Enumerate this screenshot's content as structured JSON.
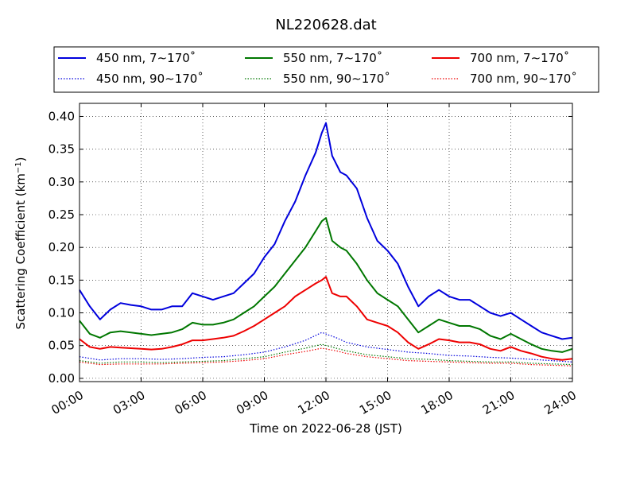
{
  "chart_data": {
    "type": "line",
    "title": "NL220628.dat",
    "xlabel": "Time on 2022-06-28 (JST)",
    "ylabel": "Scattering Coefficient (km",
    "ylabel_sup": "−1",
    "ylabel_close": ")",
    "x_unit": "hours",
    "xlim": [
      0,
      24
    ],
    "ylim": [
      -0.005,
      0.42
    ],
    "grid": true,
    "legend_position": "top",
    "x_ticks": [
      {
        "value": 0,
        "label": "00:00"
      },
      {
        "value": 3,
        "label": "03:00"
      },
      {
        "value": 6,
        "label": "06:00"
      },
      {
        "value": 9,
        "label": "09:00"
      },
      {
        "value": 12,
        "label": "12:00"
      },
      {
        "value": 15,
        "label": "15:00"
      },
      {
        "value": 18,
        "label": "18:00"
      },
      {
        "value": 21,
        "label": "21:00"
      },
      {
        "value": 24,
        "label": "24:00"
      }
    ],
    "y_ticks": [
      {
        "value": 0.0,
        "label": "0.00"
      },
      {
        "value": 0.05,
        "label": "0.05"
      },
      {
        "value": 0.1,
        "label": "0.10"
      },
      {
        "value": 0.15,
        "label": "0.15"
      },
      {
        "value": 0.2,
        "label": "0.20"
      },
      {
        "value": 0.25,
        "label": "0.25"
      },
      {
        "value": 0.3,
        "label": "0.30"
      },
      {
        "value": 0.35,
        "label": "0.35"
      },
      {
        "value": 0.4,
        "label": "0.40"
      }
    ],
    "series": [
      {
        "name": "450 nm, 7∼170˚",
        "color": "#0000dd",
        "style": "solid",
        "x": [
          0,
          0.5,
          1,
          1.5,
          2,
          2.5,
          3,
          3.5,
          4,
          4.5,
          5,
          5.5,
          6,
          6.5,
          7,
          7.5,
          8,
          8.5,
          9,
          9.5,
          10,
          10.5,
          11,
          11.5,
          11.8,
          12,
          12.3,
          12.7,
          13,
          13.5,
          14,
          14.5,
          15,
          15.5,
          16,
          16.5,
          17,
          17.5,
          18,
          18.5,
          19,
          19.5,
          20,
          20.5,
          21,
          21.5,
          22,
          22.5,
          23,
          23.5,
          24
        ],
        "y": [
          0.135,
          0.11,
          0.09,
          0.105,
          0.115,
          0.112,
          0.11,
          0.105,
          0.105,
          0.11,
          0.11,
          0.13,
          0.125,
          0.12,
          0.125,
          0.13,
          0.145,
          0.16,
          0.185,
          0.205,
          0.24,
          0.27,
          0.31,
          0.345,
          0.375,
          0.39,
          0.34,
          0.315,
          0.31,
          0.29,
          0.245,
          0.21,
          0.195,
          0.175,
          0.14,
          0.11,
          0.125,
          0.135,
          0.125,
          0.12,
          0.12,
          0.11,
          0.1,
          0.095,
          0.1,
          0.09,
          0.08,
          0.07,
          0.065,
          0.06,
          0.062
        ]
      },
      {
        "name": "450 nm, 90∼170˚",
        "color": "#0000dd",
        "style": "dotted",
        "x": [
          0,
          1,
          2,
          3,
          4,
          5,
          6,
          7,
          8,
          9,
          10,
          11,
          11.8,
          12.5,
          13,
          14,
          15,
          16,
          17,
          18,
          19,
          20,
          21,
          22,
          23,
          24
        ],
        "y": [
          0.033,
          0.028,
          0.03,
          0.03,
          0.029,
          0.03,
          0.032,
          0.033,
          0.036,
          0.04,
          0.048,
          0.058,
          0.07,
          0.062,
          0.055,
          0.048,
          0.044,
          0.04,
          0.038,
          0.035,
          0.034,
          0.032,
          0.031,
          0.029,
          0.027,
          0.025
        ]
      },
      {
        "name": "550 nm, 7∼170˚",
        "color": "#007700",
        "style": "solid",
        "x": [
          0,
          0.5,
          1,
          1.5,
          2,
          2.5,
          3,
          3.5,
          4,
          4.5,
          5,
          5.5,
          6,
          6.5,
          7,
          7.5,
          8,
          8.5,
          9,
          9.5,
          10,
          10.5,
          11,
          11.5,
          11.8,
          12,
          12.3,
          12.7,
          13,
          13.5,
          14,
          14.5,
          15,
          15.5,
          16,
          16.5,
          17,
          17.5,
          18,
          18.5,
          19,
          19.5,
          20,
          20.5,
          21,
          21.5,
          22,
          22.5,
          23,
          23.5,
          24
        ],
        "y": [
          0.088,
          0.068,
          0.062,
          0.07,
          0.072,
          0.07,
          0.068,
          0.066,
          0.068,
          0.07,
          0.075,
          0.085,
          0.082,
          0.082,
          0.085,
          0.09,
          0.1,
          0.11,
          0.125,
          0.14,
          0.16,
          0.18,
          0.2,
          0.225,
          0.24,
          0.245,
          0.21,
          0.2,
          0.195,
          0.175,
          0.15,
          0.13,
          0.12,
          0.11,
          0.09,
          0.07,
          0.08,
          0.09,
          0.085,
          0.08,
          0.08,
          0.075,
          0.065,
          0.06,
          0.068,
          0.06,
          0.052,
          0.045,
          0.042,
          0.04,
          0.045
        ]
      },
      {
        "name": "550 nm, 90∼170˚",
        "color": "#007700",
        "style": "dotted",
        "x": [
          0,
          1,
          2,
          3,
          4,
          5,
          6,
          7,
          8,
          9,
          10,
          11,
          11.8,
          12.5,
          13,
          14,
          15,
          16,
          17,
          18,
          19,
          20,
          21,
          22,
          23,
          24
        ],
        "y": [
          0.027,
          0.023,
          0.025,
          0.025,
          0.024,
          0.025,
          0.026,
          0.027,
          0.03,
          0.033,
          0.04,
          0.046,
          0.052,
          0.046,
          0.042,
          0.036,
          0.033,
          0.03,
          0.029,
          0.027,
          0.026,
          0.025,
          0.025,
          0.023,
          0.022,
          0.021
        ]
      },
      {
        "name": "700 nm, 7∼170˚",
        "color": "#ee0000",
        "style": "solid",
        "x": [
          0,
          0.5,
          1,
          1.5,
          2,
          2.5,
          3,
          3.5,
          4,
          4.5,
          5,
          5.5,
          6,
          6.5,
          7,
          7.5,
          8,
          8.5,
          9,
          9.5,
          10,
          10.5,
          11,
          11.5,
          11.8,
          12,
          12.3,
          12.7,
          13,
          13.5,
          14,
          14.5,
          15,
          15.5,
          16,
          16.5,
          17,
          17.5,
          18,
          18.5,
          19,
          19.5,
          20,
          20.5,
          21,
          21.5,
          22,
          22.5,
          23,
          23.5,
          24
        ],
        "y": [
          0.06,
          0.048,
          0.045,
          0.048,
          0.047,
          0.046,
          0.045,
          0.044,
          0.045,
          0.048,
          0.052,
          0.058,
          0.058,
          0.06,
          0.062,
          0.065,
          0.072,
          0.08,
          0.09,
          0.1,
          0.11,
          0.125,
          0.135,
          0.145,
          0.15,
          0.155,
          0.13,
          0.125,
          0.125,
          0.11,
          0.09,
          0.085,
          0.08,
          0.07,
          0.055,
          0.045,
          0.052,
          0.06,
          0.058,
          0.055,
          0.055,
          0.052,
          0.045,
          0.042,
          0.048,
          0.042,
          0.038,
          0.033,
          0.03,
          0.028,
          0.03
        ]
      },
      {
        "name": "700 nm, 90∼170˚",
        "color": "#ee0000",
        "style": "dotted",
        "x": [
          0,
          1,
          2,
          3,
          4,
          5,
          6,
          7,
          8,
          9,
          10,
          11,
          11.8,
          12.5,
          13,
          14,
          15,
          16,
          17,
          18,
          19,
          20,
          21,
          22,
          23,
          24
        ],
        "y": [
          0.025,
          0.021,
          0.022,
          0.022,
          0.022,
          0.023,
          0.024,
          0.025,
          0.027,
          0.03,
          0.036,
          0.041,
          0.046,
          0.042,
          0.038,
          0.033,
          0.03,
          0.027,
          0.026,
          0.025,
          0.024,
          0.023,
          0.023,
          0.021,
          0.02,
          0.019
        ]
      }
    ]
  }
}
